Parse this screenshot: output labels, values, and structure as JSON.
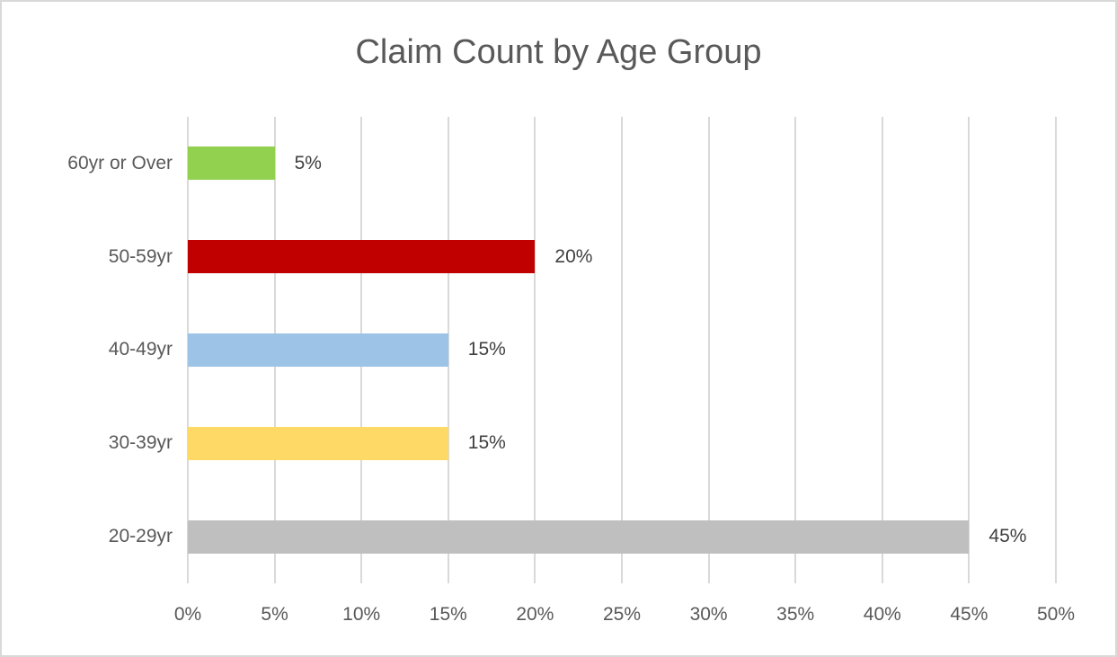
{
  "chart_data": {
    "type": "bar",
    "orientation": "horizontal",
    "title": "Claim Count by Age Group",
    "categories": [
      "60yr or Over",
      "50-59yr",
      "40-49yr",
      "30-39yr",
      "20-29yr"
    ],
    "values": [
      5,
      20,
      15,
      15,
      45
    ],
    "value_labels": [
      "5%",
      "20%",
      "15%",
      "15%",
      "45%"
    ],
    "bar_colors": [
      "#92D050",
      "#C00000",
      "#9DC3E6",
      "#FFD966",
      "#BFBFBF"
    ],
    "xlim": [
      0,
      50
    ],
    "x_tick_step": 5,
    "x_tick_labels": [
      "0%",
      "5%",
      "10%",
      "15%",
      "20%",
      "25%",
      "30%",
      "35%",
      "40%",
      "45%",
      "50%"
    ],
    "grid": "vertical",
    "legend": "none",
    "colors": {
      "gridline": "#D9D9D9",
      "border": "#D9D9D9",
      "title_text": "#595959",
      "axis_text": "#595959",
      "value_label_text": "#404040",
      "background": "#FFFFFF"
    }
  }
}
